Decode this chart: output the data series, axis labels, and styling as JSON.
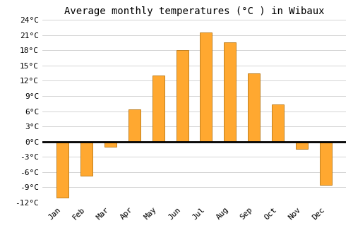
{
  "title": "Average monthly temperatures (°C ) in Wibaux",
  "months": [
    "Jan",
    "Feb",
    "Mar",
    "Apr",
    "May",
    "Jun",
    "Jul",
    "Aug",
    "Sep",
    "Oct",
    "Nov",
    "Dec"
  ],
  "temperatures": [
    -11.0,
    -6.7,
    -1.0,
    6.3,
    13.0,
    18.0,
    21.5,
    19.5,
    13.5,
    7.3,
    -1.5,
    -8.5
  ],
  "bar_color": "#FFA830",
  "bar_edge_color": "#C08020",
  "ylim": [
    -12,
    24
  ],
  "yticks": [
    -12,
    -9,
    -6,
    -3,
    0,
    3,
    6,
    9,
    12,
    15,
    18,
    21,
    24
  ],
  "background_color": "#FFFFFF",
  "grid_color": "#CCCCCC",
  "title_fontsize": 10,
  "tick_fontsize": 8,
  "font_family": "monospace",
  "bar_width": 0.5
}
